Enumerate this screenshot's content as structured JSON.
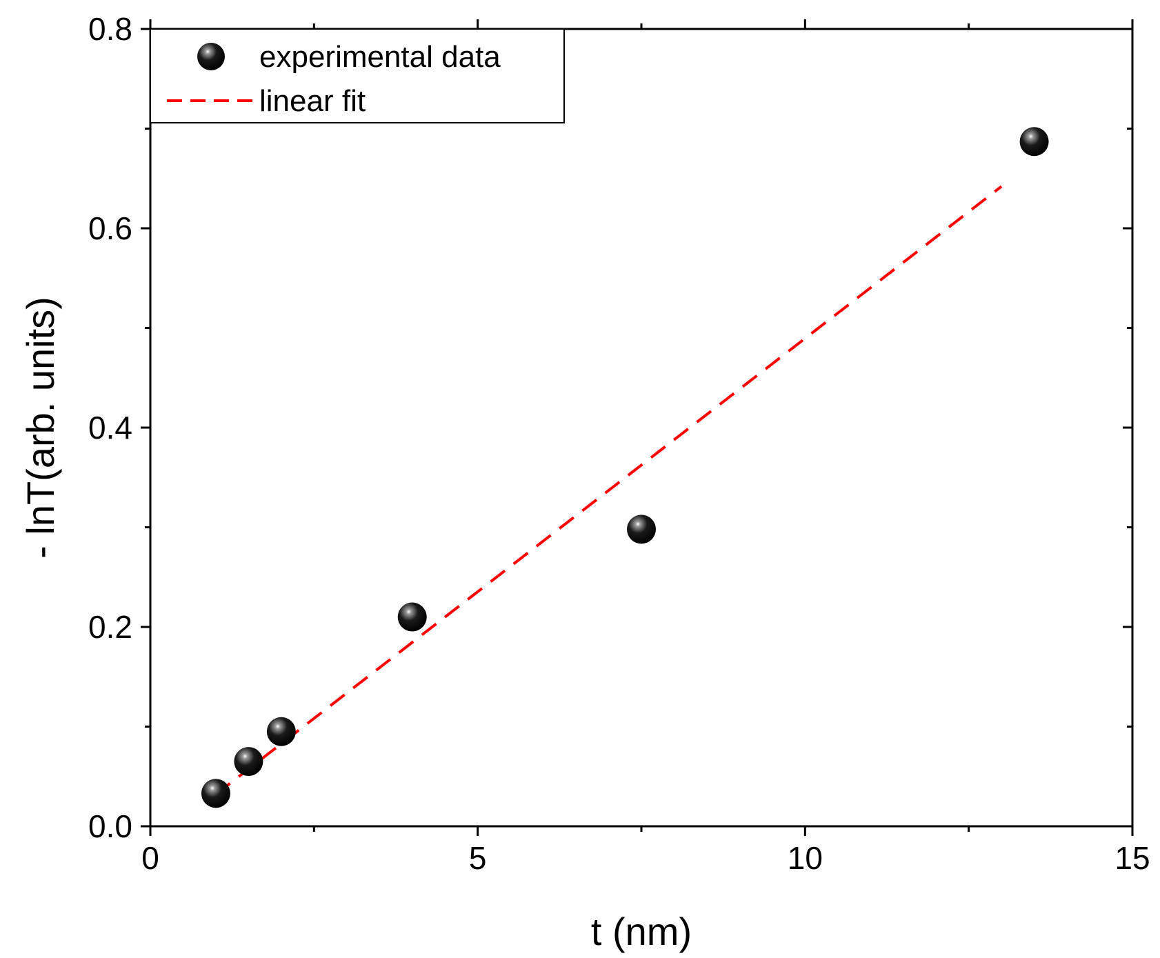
{
  "chart_data": {
    "type": "scatter",
    "title": "",
    "xlabel": "t (nm)",
    "ylabel": "- lnT(arb. units)",
    "xlim": [
      0,
      15
    ],
    "ylim": [
      0,
      0.8
    ],
    "xticks": [
      0,
      5,
      10,
      15
    ],
    "xtick_labels": [
      "0",
      "5",
      "10",
      "15"
    ],
    "yticks": [
      0.0,
      0.2,
      0.4,
      0.6,
      0.8
    ],
    "ytick_labels": [
      "0.0",
      "0.2",
      "0.4",
      "0.6",
      "0.8"
    ],
    "x_minor_ticks": [
      2.5,
      7.5,
      12.5
    ],
    "y_minor_ticks": [
      0.1,
      0.3,
      0.5,
      0.7
    ],
    "grid": false,
    "legend_position": "top-left",
    "series": [
      {
        "name": "experimental data",
        "kind": "points",
        "color": "#000000",
        "x": [
          1.0,
          1.5,
          2.0,
          4.0,
          7.5,
          13.5
        ],
        "y": [
          0.033,
          0.065,
          0.095,
          0.21,
          0.298,
          0.687
        ]
      },
      {
        "name": "linear fit",
        "kind": "dashed-line",
        "color": "#ff0000",
        "x": [
          1.0,
          13.0
        ],
        "y": [
          0.032,
          0.642
        ]
      }
    ]
  }
}
